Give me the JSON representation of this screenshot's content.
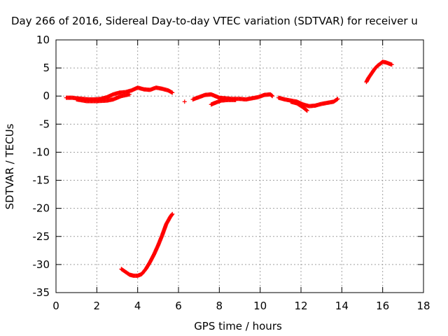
{
  "chart_data": {
    "type": "scatter",
    "title": "Day 266 of 2016, Sidereal Day-to-day VTEC variation (SDTVAR) for receiver u",
    "xlabel": "GPS time / hours",
    "ylabel": "SDTVAR / TECUs",
    "xlim": [
      0,
      18
    ],
    "ylim": [
      -35,
      10
    ],
    "xticks": [
      "0",
      "2",
      "4",
      "6",
      "8",
      "10",
      "12",
      "14",
      "16",
      "18"
    ],
    "yticks": [
      "10",
      "5",
      "0",
      "-5",
      "-10",
      "-15",
      "-20",
      "-25",
      "-30",
      "-35"
    ],
    "grid": true,
    "marker": "plus",
    "series": [
      {
        "color": "#ff0000",
        "segments": [
          [
            [
              0.5,
              -0.3
            ],
            [
              0.8,
              -0.3
            ],
            [
              1.0,
              -0.4
            ],
            [
              1.3,
              -0.5
            ],
            [
              1.6,
              -0.6
            ],
            [
              1.9,
              -0.6
            ],
            [
              2.2,
              -0.5
            ],
            [
              2.5,
              -0.2
            ],
            [
              2.8,
              0.3
            ],
            [
              3.1,
              0.6
            ],
            [
              3.4,
              0.7
            ],
            [
              3.7,
              1.0
            ],
            [
              4.0,
              1.5
            ],
            [
              4.3,
              1.2
            ],
            [
              4.6,
              1.1
            ],
            [
              4.9,
              1.5
            ],
            [
              5.2,
              1.3
            ],
            [
              5.5,
              1.0
            ],
            [
              5.7,
              0.6
            ]
          ],
          [
            [
              1.0,
              -0.6
            ],
            [
              1.5,
              -0.9
            ],
            [
              2.0,
              -0.9
            ],
            [
              2.5,
              -0.8
            ],
            [
              2.8,
              -0.6
            ],
            [
              3.2,
              0.0
            ],
            [
              3.6,
              0.3
            ]
          ],
          [
            [
              6.3,
              -1.0
            ]
          ],
          [
            [
              6.7,
              -0.6
            ],
            [
              7.0,
              -0.2
            ],
            [
              7.3,
              0.2
            ],
            [
              7.6,
              0.3
            ],
            [
              7.8,
              0.0
            ],
            [
              8.0,
              -0.3
            ],
            [
              8.3,
              -0.4
            ],
            [
              8.6,
              -0.5
            ],
            [
              9.0,
              -0.5
            ],
            [
              9.3,
              -0.6
            ],
            [
              9.6,
              -0.4
            ],
            [
              9.9,
              -0.2
            ],
            [
              10.2,
              0.2
            ],
            [
              10.5,
              0.3
            ],
            [
              10.6,
              0.0
            ]
          ],
          [
            [
              7.6,
              -1.5
            ],
            [
              7.8,
              -1.2
            ],
            [
              8.1,
              -0.8
            ],
            [
              8.4,
              -0.7
            ],
            [
              8.8,
              -0.7
            ]
          ],
          [
            [
              10.9,
              -0.3
            ],
            [
              11.2,
              -0.6
            ],
            [
              11.5,
              -0.8
            ],
            [
              11.8,
              -1.0
            ],
            [
              12.1,
              -1.5
            ],
            [
              12.4,
              -1.8
            ],
            [
              12.7,
              -1.7
            ],
            [
              13.0,
              -1.4
            ],
            [
              13.3,
              -1.2
            ],
            [
              13.6,
              -1.0
            ],
            [
              13.8,
              -0.5
            ]
          ],
          [
            [
              11.5,
              -1.0
            ],
            [
              11.8,
              -1.3
            ],
            [
              12.1,
              -2.0
            ],
            [
              12.3,
              -2.6
            ]
          ],
          [
            [
              3.2,
              -30.8
            ],
            [
              3.4,
              -31.3
            ],
            [
              3.6,
              -31.8
            ],
            [
              3.8,
              -32.0
            ],
            [
              4.0,
              -32.0
            ],
            [
              4.2,
              -31.7
            ],
            [
              4.4,
              -30.8
            ],
            [
              4.6,
              -29.6
            ],
            [
              4.8,
              -28.2
            ],
            [
              5.0,
              -26.6
            ],
            [
              5.2,
              -24.8
            ],
            [
              5.4,
              -22.8
            ],
            [
              5.6,
              -21.5
            ],
            [
              5.7,
              -21.0
            ]
          ],
          [
            [
              15.2,
              2.5
            ],
            [
              15.3,
              3.2
            ],
            [
              15.45,
              4.0
            ],
            [
              15.6,
              4.8
            ],
            [
              15.75,
              5.4
            ],
            [
              15.9,
              5.8
            ],
            [
              16.0,
              6.1
            ],
            [
              16.15,
              6.0
            ],
            [
              16.3,
              5.8
            ],
            [
              16.45,
              5.6
            ]
          ]
        ]
      }
    ]
  }
}
